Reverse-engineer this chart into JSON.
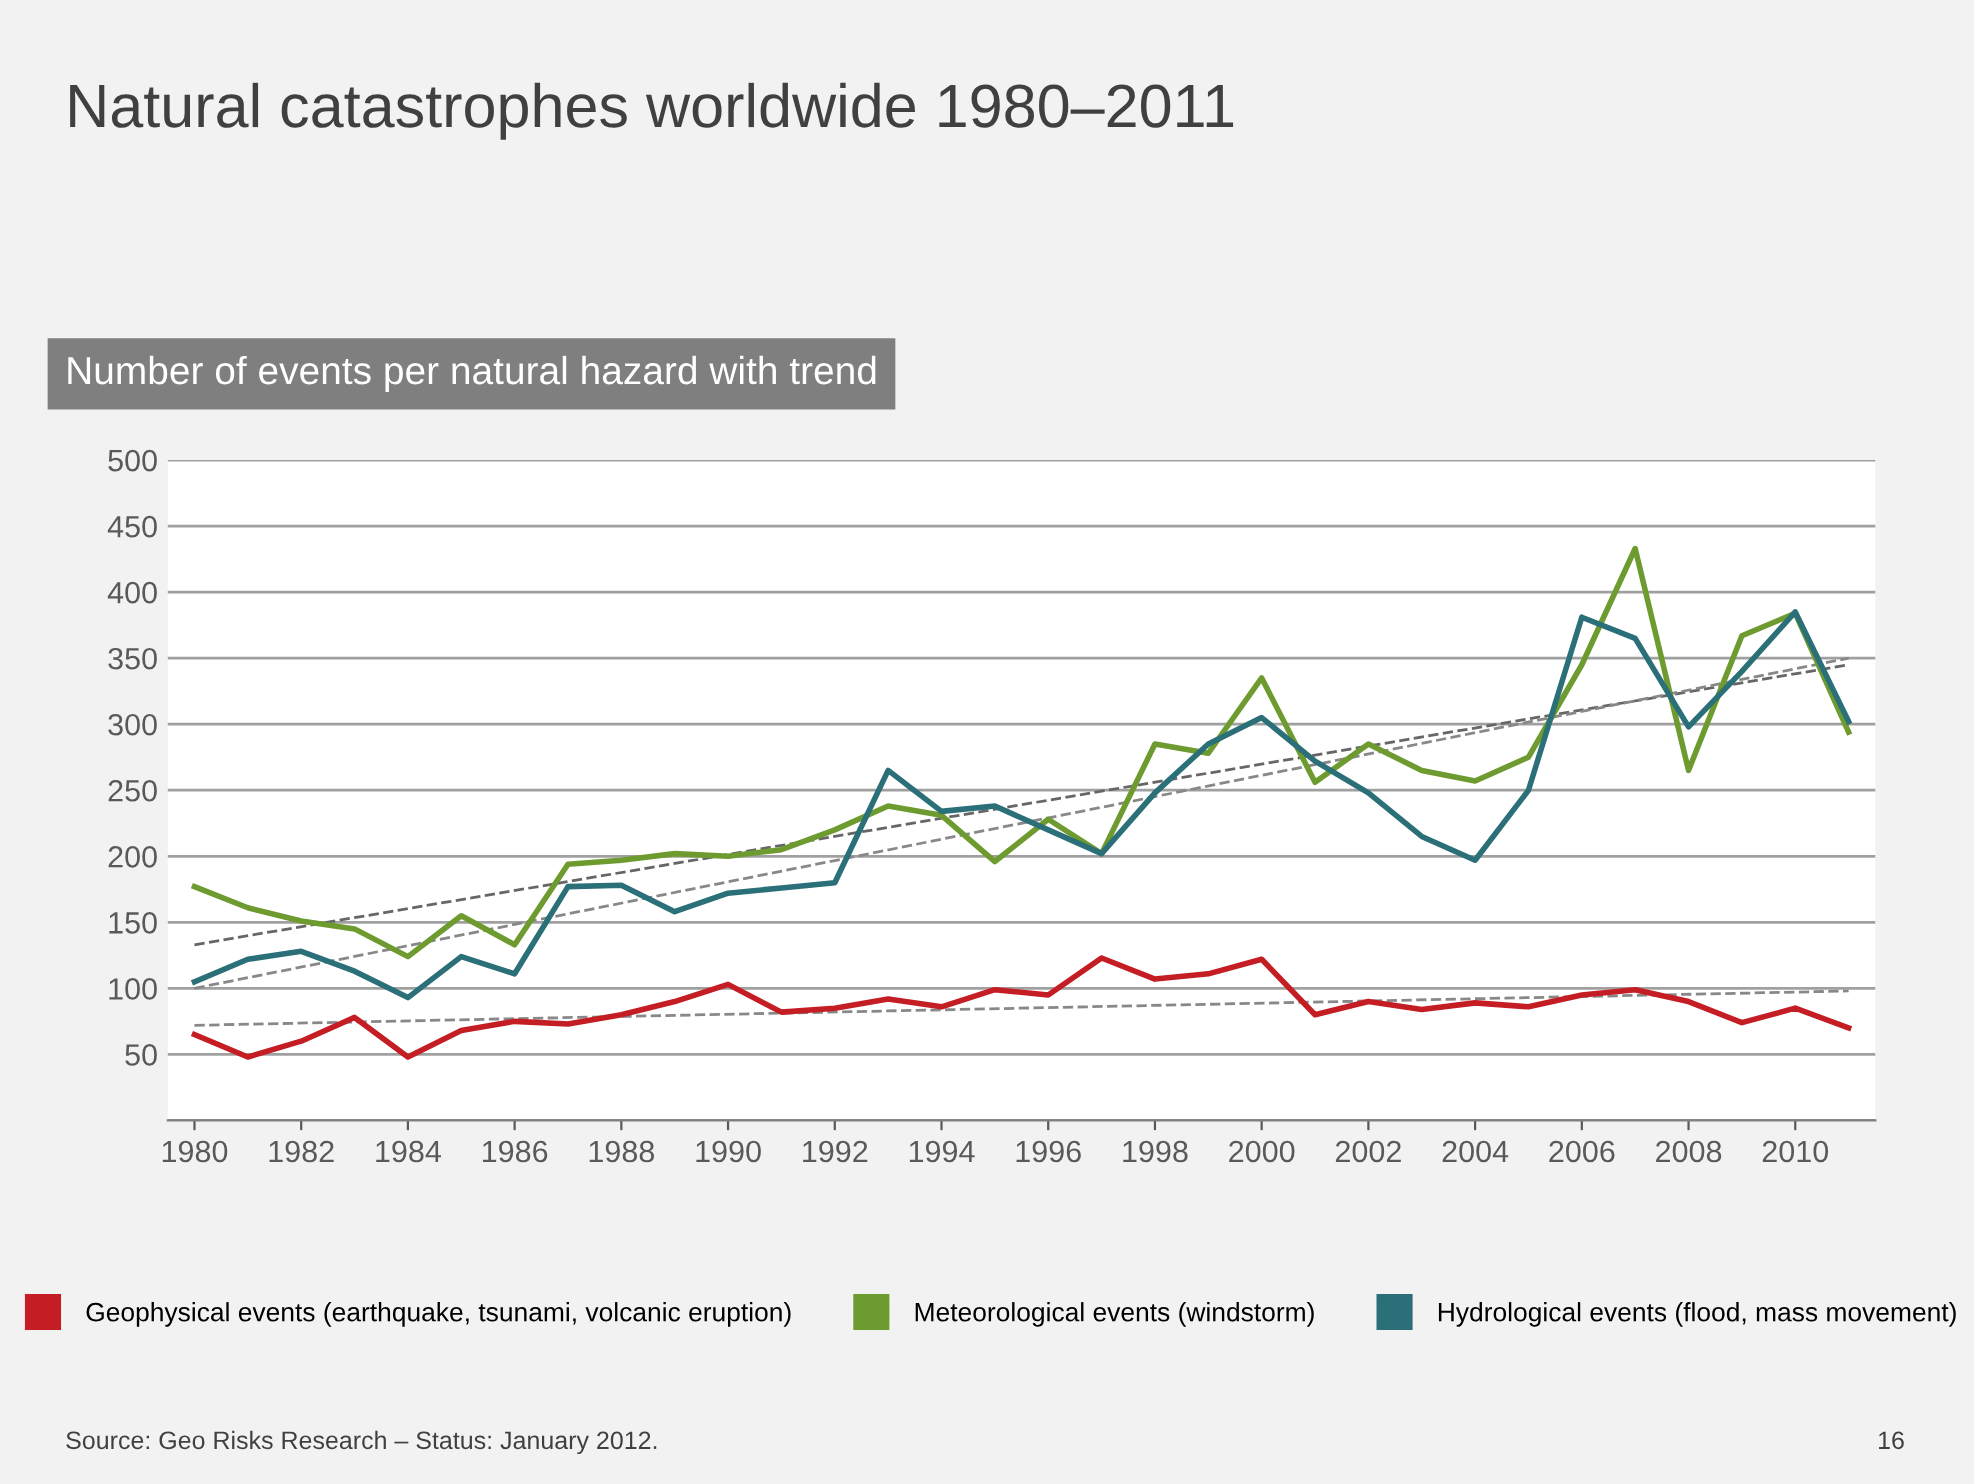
{
  "chart_data": {
    "type": "line",
    "title": "Natural catastrophes worldwide 1980–2011",
    "subtitle": "Number of events per natural hazard with trend",
    "x": [
      1980,
      1981,
      1982,
      1983,
      1984,
      1985,
      1986,
      1987,
      1988,
      1989,
      1990,
      1991,
      1992,
      1993,
      1994,
      1995,
      1996,
      1997,
      1998,
      1999,
      2000,
      2001,
      2002,
      2003,
      2004,
      2005,
      2006,
      2007,
      2008,
      2009,
      2010,
      2011
    ],
    "series": [
      {
        "name": "Geophysical events (earthquake, tsunami, volcanic eruption)",
        "color": "#c41e24",
        "values": [
          65,
          48,
          60,
          78,
          48,
          68,
          75,
          73,
          80,
          90,
          103,
          82,
          85,
          92,
          86,
          99,
          95,
          123,
          107,
          111,
          122,
          80,
          90,
          84,
          89,
          86,
          95,
          99,
          90,
          74,
          85,
          70
        ]
      },
      {
        "name": "Meteorological events (windstorm)",
        "color": "#6e9b2f",
        "values": [
          177,
          161,
          151,
          145,
          124,
          155,
          133,
          194,
          197,
          202,
          200,
          205,
          220,
          238,
          231,
          196,
          228,
          202,
          285,
          278,
          335,
          256,
          285,
          265,
          257,
          275,
          345,
          433,
          265,
          367,
          384,
          294
        ]
      },
      {
        "name": "Hydrological events (flood, mass movement)",
        "color": "#2b6f78",
        "values": [
          105,
          122,
          128,
          113,
          93,
          124,
          111,
          177,
          178,
          158,
          172,
          176,
          180,
          265,
          234,
          238,
          220,
          202,
          248,
          285,
          305,
          272,
          248,
          215,
          197,
          250,
          381,
          365,
          298,
          340,
          385,
          302
        ]
      },
      {
        "type": "line",
        "color": "#888888",
        "line_style": "dashed",
        "values": [
          72,
          null,
          null,
          null,
          null,
          null,
          null,
          null,
          null,
          null,
          null,
          null,
          null,
          null,
          null,
          null,
          null,
          null,
          null,
          null,
          null,
          null,
          null,
          null,
          null,
          null,
          null,
          null,
          null,
          null,
          null,
          98
        ]
      },
      {
        "type": "line",
        "color": "#666666",
        "line_style": "dashed",
        "values": [
          133,
          null,
          null,
          null,
          null,
          null,
          null,
          null,
          null,
          null,
          null,
          null,
          null,
          null,
          null,
          null,
          null,
          null,
          null,
          null,
          null,
          null,
          null,
          null,
          null,
          null,
          null,
          null,
          null,
          null,
          null,
          345
        ]
      },
      {
        "type": "line",
        "color": "#888888",
        "line_style": "dashed",
        "values": [
          100,
          null,
          null,
          null,
          null,
          null,
          null,
          null,
          null,
          null,
          null,
          null,
          null,
          null,
          null,
          null,
          null,
          null,
          null,
          null,
          null,
          null,
          null,
          null,
          null,
          null,
          null,
          null,
          null,
          null,
          null,
          350
        ]
      }
    ],
    "xlim": [
      1979.5,
      2011.5
    ],
    "xticks": [
      1980,
      1982,
      1984,
      1986,
      1988,
      1990,
      1992,
      1994,
      1996,
      1998,
      2000,
      2002,
      2004,
      2006,
      2008,
      2010
    ],
    "ylim": [
      0,
      500
    ],
    "yticks": [
      {
        "value": 0,
        "label": null
      },
      50,
      100,
      150,
      200,
      250,
      300,
      350,
      400,
      450,
      500
    ],
    "grid": "y",
    "legend": "bottom",
    "marker": "none",
    "line_style": "solid",
    "annotations": [
      "Source: Geo Risks Research – Status: January 2012.",
      "16"
    ]
  }
}
